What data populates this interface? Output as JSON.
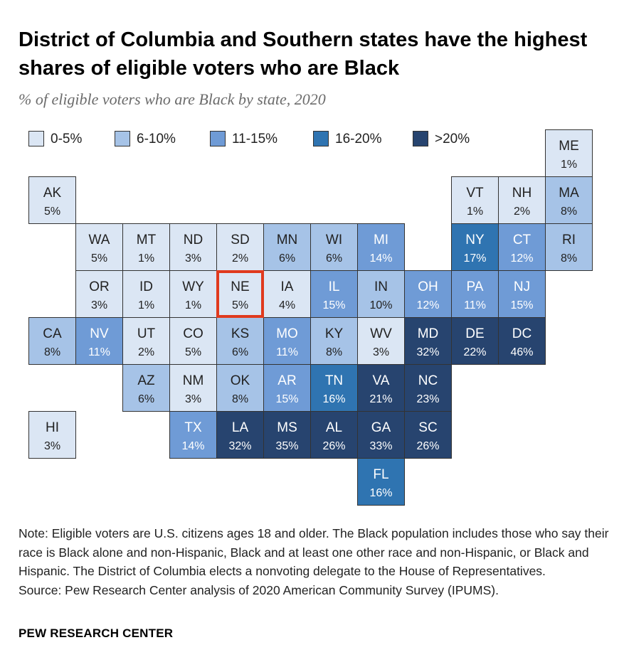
{
  "title": "District of Columbia and Southern states have the highest shares of eligible voters who are Black",
  "subtitle": "% of eligible voters who are Black by state, 2020",
  "colors": {
    "0-5%": "#dbe6f4",
    "6-10%": "#a6c3e7",
    "11-15%": "#6f9bd6",
    "16-20%": "#2f74b1",
    "20+": "#27446f",
    "highlight": "#e03a1e"
  },
  "legend": [
    {
      "label": "0-5%",
      "color": "#dbe6f4"
    },
    {
      "label": "6-10%",
      "color": "#a6c3e7"
    },
    {
      "label": "11-15%",
      "color": "#6f9bd6"
    },
    {
      "label": "16-20%",
      "color": "#2f74b1"
    },
    {
      "label": ">20%",
      "color": "#27446f"
    }
  ],
  "chart_data": {
    "type": "tile-map",
    "unit": "%",
    "highlighted_state": "NE",
    "states": [
      {
        "abbr": "ME",
        "value": 1,
        "row": 0,
        "col": 11
      },
      {
        "abbr": "AK",
        "value": 5,
        "row": 1,
        "col": 0
      },
      {
        "abbr": "VT",
        "value": 1,
        "row": 1,
        "col": 9
      },
      {
        "abbr": "NH",
        "value": 2,
        "row": 1,
        "col": 10
      },
      {
        "abbr": "MA",
        "value": 8,
        "row": 1,
        "col": 11
      },
      {
        "abbr": "WA",
        "value": 5,
        "row": 2,
        "col": 1
      },
      {
        "abbr": "MT",
        "value": 1,
        "row": 2,
        "col": 2
      },
      {
        "abbr": "ND",
        "value": 3,
        "row": 2,
        "col": 3
      },
      {
        "abbr": "SD",
        "value": 2,
        "row": 2,
        "col": 4
      },
      {
        "abbr": "MN",
        "value": 6,
        "row": 2,
        "col": 5
      },
      {
        "abbr": "WI",
        "value": 6,
        "row": 2,
        "col": 6
      },
      {
        "abbr": "MI",
        "value": 14,
        "row": 2,
        "col": 7
      },
      {
        "abbr": "NY",
        "value": 17,
        "row": 2,
        "col": 9
      },
      {
        "abbr": "CT",
        "value": 12,
        "row": 2,
        "col": 10
      },
      {
        "abbr": "RI",
        "value": 8,
        "row": 2,
        "col": 11
      },
      {
        "abbr": "OR",
        "value": 3,
        "row": 3,
        "col": 1
      },
      {
        "abbr": "ID",
        "value": 1,
        "row": 3,
        "col": 2
      },
      {
        "abbr": "WY",
        "value": 1,
        "row": 3,
        "col": 3
      },
      {
        "abbr": "NE",
        "value": 5,
        "row": 3,
        "col": 4
      },
      {
        "abbr": "IA",
        "value": 4,
        "row": 3,
        "col": 5
      },
      {
        "abbr": "IL",
        "value": 15,
        "row": 3,
        "col": 6
      },
      {
        "abbr": "IN",
        "value": 10,
        "row": 3,
        "col": 7
      },
      {
        "abbr": "OH",
        "value": 12,
        "row": 3,
        "col": 8
      },
      {
        "abbr": "PA",
        "value": 11,
        "row": 3,
        "col": 9
      },
      {
        "abbr": "NJ",
        "value": 15,
        "row": 3,
        "col": 10
      },
      {
        "abbr": "CA",
        "value": 8,
        "row": 4,
        "col": 0
      },
      {
        "abbr": "NV",
        "value": 11,
        "row": 4,
        "col": 1
      },
      {
        "abbr": "UT",
        "value": 2,
        "row": 4,
        "col": 2
      },
      {
        "abbr": "CO",
        "value": 5,
        "row": 4,
        "col": 3
      },
      {
        "abbr": "KS",
        "value": 6,
        "row": 4,
        "col": 4
      },
      {
        "abbr": "MO",
        "value": 11,
        "row": 4,
        "col": 5
      },
      {
        "abbr": "KY",
        "value": 8,
        "row": 4,
        "col": 6
      },
      {
        "abbr": "WV",
        "value": 3,
        "row": 4,
        "col": 7
      },
      {
        "abbr": "MD",
        "value": 32,
        "row": 4,
        "col": 8
      },
      {
        "abbr": "DE",
        "value": 22,
        "row": 4,
        "col": 9
      },
      {
        "abbr": "DC",
        "value": 46,
        "row": 4,
        "col": 10
      },
      {
        "abbr": "AZ",
        "value": 6,
        "row": 5,
        "col": 2
      },
      {
        "abbr": "NM",
        "value": 3,
        "row": 5,
        "col": 3
      },
      {
        "abbr": "OK",
        "value": 8,
        "row": 5,
        "col": 4
      },
      {
        "abbr": "AR",
        "value": 15,
        "row": 5,
        "col": 5
      },
      {
        "abbr": "TN",
        "value": 16,
        "row": 5,
        "col": 6
      },
      {
        "abbr": "VA",
        "value": 21,
        "row": 5,
        "col": 7
      },
      {
        "abbr": "NC",
        "value": 23,
        "row": 5,
        "col": 8
      },
      {
        "abbr": "HI",
        "value": 3,
        "row": 6,
        "col": 0
      },
      {
        "abbr": "TX",
        "value": 14,
        "row": 6,
        "col": 3
      },
      {
        "abbr": "LA",
        "value": 32,
        "row": 6,
        "col": 4
      },
      {
        "abbr": "MS",
        "value": 35,
        "row": 6,
        "col": 5
      },
      {
        "abbr": "AL",
        "value": 26,
        "row": 6,
        "col": 6
      },
      {
        "abbr": "GA",
        "value": 33,
        "row": 6,
        "col": 7
      },
      {
        "abbr": "SC",
        "value": 26,
        "row": 6,
        "col": 8
      },
      {
        "abbr": "FL",
        "value": 16,
        "row": 7,
        "col": 7
      }
    ]
  },
  "note": "Note: Eligible voters are U.S. citizens ages 18 and older. The Black population includes those who say their race is Black alone and non-Hispanic, Black and at least one other race and non-Hispanic, or Black and Hispanic. The District of Columbia elects a nonvoting delegate to the House of Representatives.",
  "source": "Source: Pew Research Center analysis of 2020 American Community Survey (IPUMS).",
  "brand": "PEW RESEARCH CENTER"
}
